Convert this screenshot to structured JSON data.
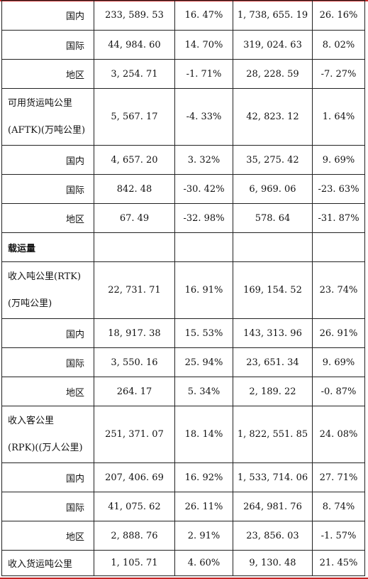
{
  "rows": [
    {
      "kind": "sub",
      "label": "国内",
      "values": [
        "233, 589. 53",
        "16. 47%",
        "1, 738, 655. 19",
        "26. 16%"
      ]
    },
    {
      "kind": "sub",
      "label": "国际",
      "values": [
        "44, 984. 60",
        "14. 70%",
        "319, 024. 63",
        "8. 02%"
      ]
    },
    {
      "kind": "sub",
      "label": "地区",
      "values": [
        "3, 254. 71",
        "-1. 71%",
        "28, 228. 59",
        "-7. 27%"
      ]
    },
    {
      "kind": "multi",
      "label_lines": [
        "可用货运吨公里",
        "(AFTK)(万吨公里)"
      ],
      "values": [
        "5, 567. 17",
        "-4. 33%",
        "42, 823. 12",
        "1. 64%"
      ]
    },
    {
      "kind": "sub",
      "label": "国内",
      "values": [
        "4, 657. 20",
        "3. 32%",
        "35, 275. 42",
        "9. 69%"
      ]
    },
    {
      "kind": "sub",
      "label": "国际",
      "values": [
        "842. 48",
        "-30. 42%",
        "6, 969. 06",
        "-23. 63%"
      ]
    },
    {
      "kind": "sub",
      "label": "地区",
      "values": [
        "67. 49",
        "-32. 98%",
        "578. 64",
        "-31. 87%"
      ]
    },
    {
      "kind": "section",
      "label": "载运量",
      "values": [
        "",
        "",
        "",
        ""
      ]
    },
    {
      "kind": "multi",
      "label_lines": [
        "收入吨公里(RTK)",
        "(万吨公里)"
      ],
      "values": [
        "22, 731. 71",
        "16. 91%",
        "169, 154. 52",
        "23. 74%"
      ]
    },
    {
      "kind": "sub",
      "label": "国内",
      "values": [
        "18, 917. 38",
        "15. 53%",
        "143, 313. 96",
        "26. 91%"
      ]
    },
    {
      "kind": "sub",
      "label": "国际",
      "values": [
        "3, 550. 16",
        "25. 94%",
        "23, 651. 34",
        "9. 69%"
      ]
    },
    {
      "kind": "sub",
      "label": "地区",
      "values": [
        "264. 17",
        "5. 34%",
        "2, 189. 22",
        "-0. 87%"
      ]
    },
    {
      "kind": "multi",
      "label_lines": [
        "收入客公里",
        "(RPK)((万人公里)"
      ],
      "values": [
        "251, 371. 07",
        "18. 14%",
        "1, 822, 551. 85",
        "24. 08%"
      ]
    },
    {
      "kind": "sub",
      "label": "国内",
      "values": [
        "207, 406. 69",
        "16. 92%",
        "1, 533, 714. 06",
        "27. 71%"
      ]
    },
    {
      "kind": "sub",
      "label": "国际",
      "values": [
        "41, 075. 62",
        "26. 11%",
        "264, 981. 76",
        "8. 74%"
      ]
    },
    {
      "kind": "sub",
      "label": "地区",
      "values": [
        "2, 888. 76",
        "2. 91%",
        "23, 856. 03",
        "-1. 57%"
      ]
    },
    {
      "kind": "single",
      "label": "收入货运吨公里",
      "values": [
        "1, 105. 71",
        "4. 60%",
        "9, 130. 48",
        "21. 45%"
      ]
    }
  ]
}
